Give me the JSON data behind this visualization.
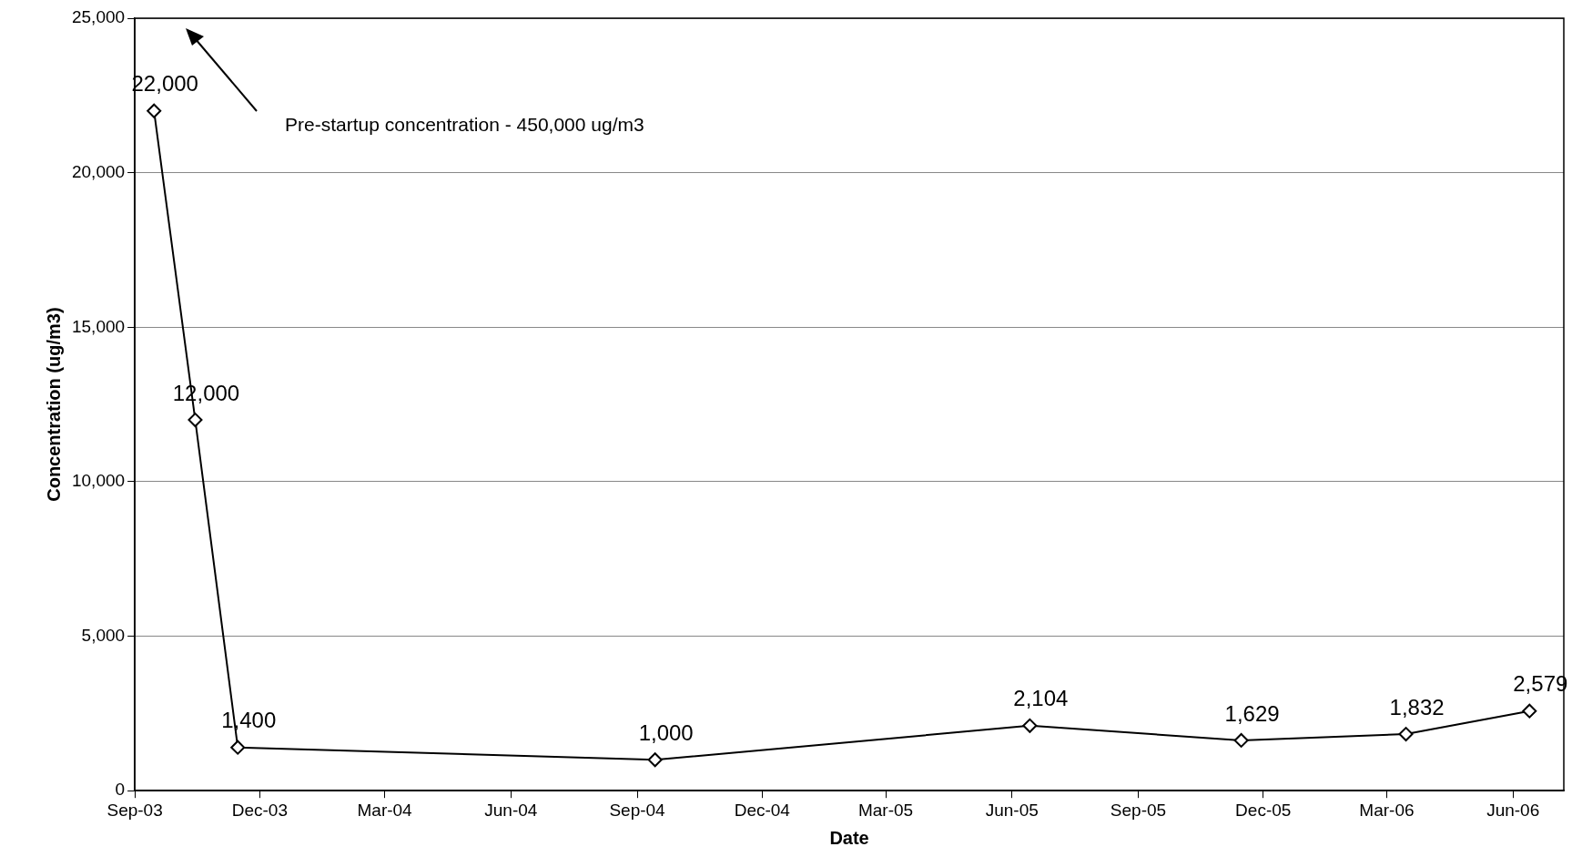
{
  "chart_data": {
    "type": "line",
    "xlabel": "Date",
    "ylabel": "Concentration (ug/m3)",
    "x": [
      "2003-09-15",
      "2003-10-15",
      "2003-11-15",
      "2004-09-14",
      "2005-06-14",
      "2005-11-15",
      "2006-03-15",
      "2006-06-13"
    ],
    "series": [
      {
        "color": "#000000",
        "values": [
          22000,
          12000,
          1400,
          1000,
          2104,
          1629,
          1832,
          2579
        ],
        "value_labels": [
          "22,000",
          "12,000",
          "1,400",
          "1,000",
          "2,104",
          "1,629",
          "1,832",
          "2,579"
        ]
      }
    ],
    "xlim": [
      "2003-09-01",
      "2006-07-08"
    ],
    "xticks": [
      {
        "value": "2003-09",
        "label": "Sep-03"
      },
      {
        "value": "2003-12",
        "label": "Dec-03"
      },
      {
        "value": "2004-03",
        "label": "Mar-04"
      },
      {
        "value": "2004-06",
        "label": "Jun-04"
      },
      {
        "value": "2004-09",
        "label": "Sep-04"
      },
      {
        "value": "2004-12",
        "label": "Dec-04"
      },
      {
        "value": "2005-03",
        "label": "Mar-05"
      },
      {
        "value": "2005-06",
        "label": "Jun-05"
      },
      {
        "value": "2005-09",
        "label": "Sep-05"
      },
      {
        "value": "2005-12",
        "label": "Dec-05"
      },
      {
        "value": "2006-03",
        "label": "Mar-06"
      },
      {
        "value": "2006-06",
        "label": "Jun-06"
      }
    ],
    "ylim": [
      0,
      25000
    ],
    "yticks": [
      0,
      {
        "value": 5000,
        "label": "5,000"
      },
      {
        "value": 10000,
        "label": "10,000"
      },
      {
        "value": 15000,
        "label": "15,000"
      },
      {
        "value": 20000,
        "label": "20,000"
      },
      {
        "value": 25000,
        "label": "25,000"
      }
    ],
    "grid": "y",
    "legend": false,
    "marker": "diamond",
    "line_style": "solid",
    "annotations": [
      "Pre-startup concentration - 450,000 ug/m3"
    ]
  }
}
